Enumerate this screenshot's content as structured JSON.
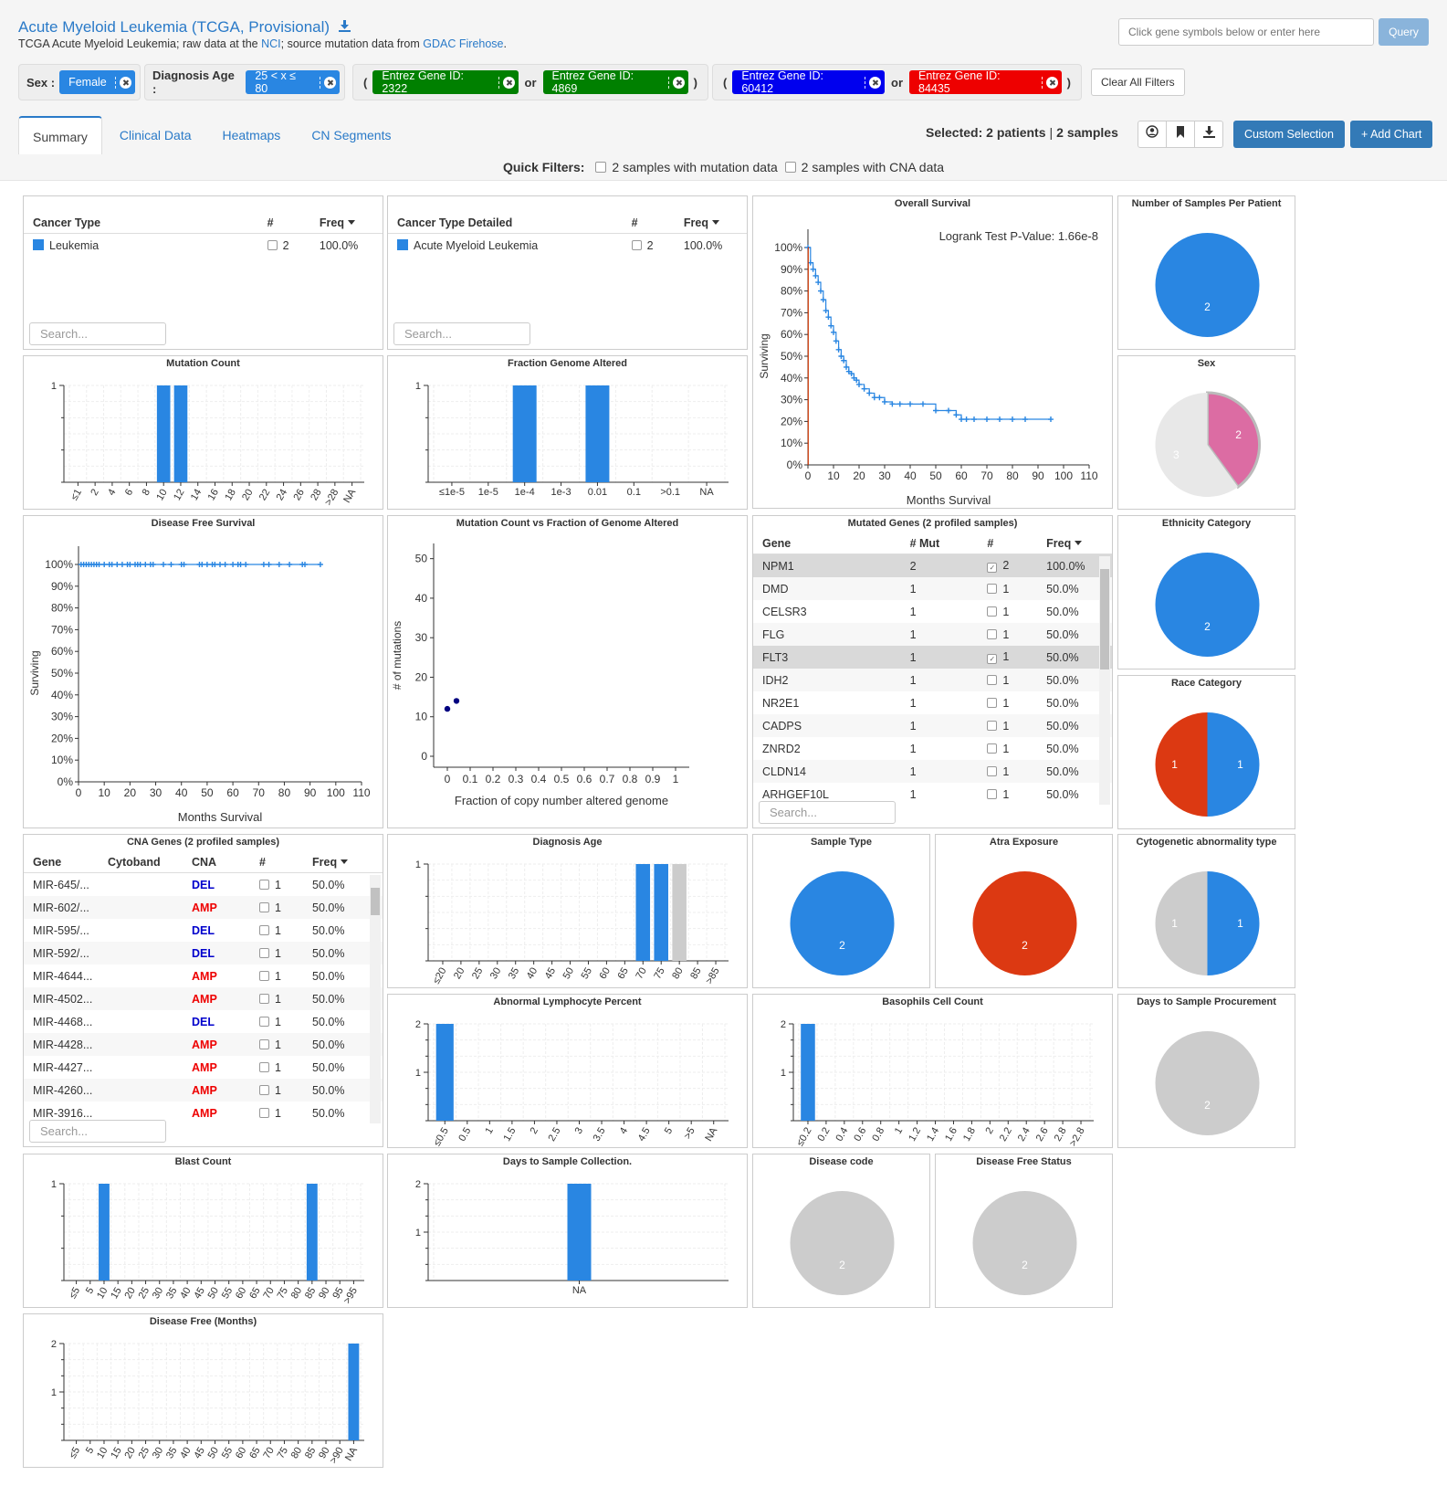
{
  "header": {
    "title": "Acute Myeloid Leukemia (TCGA, Provisional)",
    "download_icon": "download-icon",
    "sub_prefix": "TCGA Acute Myeloid Leukemia; raw data at the ",
    "nci_link": "NCI",
    "sub_mid": "; source mutation data from ",
    "gdac_link": "GDAC Firehose",
    "sub_end": ".",
    "gene_input_placeholder": "Click gene symbols below or enter here",
    "query_label": "Query"
  },
  "filters": {
    "sex_label": "Sex :",
    "sex_value": "Female",
    "age_label": "Diagnosis Age :",
    "age_value": "25 < x ≤ 80",
    "open_paren": "(",
    "close_paren": ")",
    "or": "or",
    "g1": "Entrez Gene ID: 2322",
    "g2": "Entrez Gene ID: 4869",
    "g3": "Entrez Gene ID: 60412",
    "g4": "Entrez Gene ID: 84435",
    "clear_all": "Clear All Filters",
    "colors": {
      "sex": "#2986e2",
      "g1": "#008000",
      "g2": "#008000",
      "g3": "#0000ee",
      "g4": "#ee0000"
    }
  },
  "tabs": [
    "Summary",
    "Clinical Data",
    "Heatmaps",
    "CN Segments"
  ],
  "selection": {
    "prefix": "Selected:",
    "patients": "2 patients",
    "sep": "|",
    "samples": "2 samples"
  },
  "toolbar": {
    "custom_selection": "Custom Selection",
    "add_chart": "+ Add Chart",
    "icons": [
      "user-icon",
      "bookmark-icon",
      "download-icon"
    ]
  },
  "quick_filters": {
    "label": "Quick Filters:",
    "mut": "2 samples with mutation data",
    "cna": "2 samples with CNA data"
  },
  "cancer_type": {
    "h": [
      "Cancer Type",
      "#",
      "Freq"
    ],
    "row": [
      "Leukemia",
      "2",
      "100.0%"
    ],
    "search": "Search..."
  },
  "cancer_type_detailed": {
    "h": [
      "Cancer Type Detailed",
      "#",
      "Freq"
    ],
    "row": [
      "Acute Myeloid Leukemia",
      "2",
      "100.0%"
    ],
    "search": "Search..."
  },
  "mutated_genes": {
    "title": "Mutated Genes (2 profiled samples)",
    "h": [
      "Gene",
      "# Mut",
      "#",
      "Freq"
    ],
    "search": "Search...",
    "rows": [
      [
        "NPM1",
        "2",
        "2",
        "100.0%",
        true
      ],
      [
        "DMD",
        "1",
        "1",
        "50.0%",
        false
      ],
      [
        "CELSR3",
        "1",
        "1",
        "50.0%",
        false
      ],
      [
        "FLG",
        "1",
        "1",
        "50.0%",
        false
      ],
      [
        "FLT3",
        "1",
        "1",
        "50.0%",
        true
      ],
      [
        "IDH2",
        "1",
        "1",
        "50.0%",
        false
      ],
      [
        "NR2E1",
        "1",
        "1",
        "50.0%",
        false
      ],
      [
        "CADPS",
        "1",
        "1",
        "50.0%",
        false
      ],
      [
        "ZNRD2",
        "1",
        "1",
        "50.0%",
        false
      ],
      [
        "CLDN14",
        "1",
        "1",
        "50.0%",
        false
      ],
      [
        "ARHGEF10L",
        "1",
        "1",
        "50.0%",
        false
      ]
    ]
  },
  "cna_genes": {
    "title": "CNA Genes (2 profiled samples)",
    "h": [
      "Gene",
      "Cytoband",
      "CNA",
      "#",
      "Freq"
    ],
    "search": "Search...",
    "rows": [
      [
        "MIR-645/...",
        "DEL",
        "1",
        "50.0%"
      ],
      [
        "MIR-602/...",
        "AMP",
        "1",
        "50.0%"
      ],
      [
        "MIR-595/...",
        "DEL",
        "1",
        "50.0%"
      ],
      [
        "MIR-592/...",
        "DEL",
        "1",
        "50.0%"
      ],
      [
        "MIR-4644...",
        "AMP",
        "1",
        "50.0%"
      ],
      [
        "MIR-4502...",
        "AMP",
        "1",
        "50.0%"
      ],
      [
        "MIR-4468...",
        "DEL",
        "1",
        "50.0%"
      ],
      [
        "MIR-4428...",
        "AMP",
        "1",
        "50.0%"
      ],
      [
        "MIR-4427...",
        "AMP",
        "1",
        "50.0%"
      ],
      [
        "MIR-4260...",
        "AMP",
        "1",
        "50.0%"
      ],
      [
        "MIR-3916...",
        "AMP",
        "1",
        "50.0%"
      ]
    ],
    "colors": {
      "DEL": "#0000cc",
      "AMP": "#ee0000"
    }
  },
  "chart_data": [
    {
      "id": "os",
      "type": "line",
      "title": "Overall Survival",
      "xlabel": "Months Survival",
      "ylabel": "Surviving",
      "logrank": "Logrank Test P-Value: 1.66e-8",
      "xlim": [
        0,
        110
      ],
      "xticks": [
        0,
        10,
        20,
        30,
        40,
        50,
        60,
        70,
        80,
        90,
        100,
        110
      ],
      "yticks": [
        "0%",
        "10%",
        "20%",
        "30%",
        "40%",
        "50%",
        "60%",
        "70%",
        "80%",
        "90%",
        "100%"
      ],
      "series": [
        {
          "color": "#2986e2",
          "x": [
            0,
            1,
            2,
            3,
            4,
            5,
            6,
            7,
            8,
            9,
            10,
            11,
            12,
            13,
            14,
            15,
            16,
            17,
            18,
            19,
            20,
            22,
            24,
            26,
            28,
            30,
            33,
            36,
            40,
            45,
            50,
            55,
            58,
            60,
            62,
            65,
            70,
            75,
            80,
            85,
            95
          ],
          "y": [
            100,
            93,
            90,
            87,
            84,
            80,
            76,
            71,
            68,
            64,
            61,
            57,
            53,
            50,
            48,
            45,
            43,
            42,
            40,
            39,
            37,
            35,
            33,
            31,
            31,
            29,
            28,
            28,
            28,
            28,
            25,
            25,
            23,
            21,
            21,
            21,
            21,
            21,
            21,
            21,
            21
          ]
        },
        {
          "color": "#cc3300",
          "x": [
            0,
            0.1,
            0.1
          ],
          "y": [
            100,
            100,
            0
          ]
        }
      ]
    },
    {
      "id": "dfs",
      "type": "line",
      "title": "Disease Free Survival",
      "xlabel": "Months Survival",
      "ylabel": "Surviving",
      "xlim": [
        0,
        110
      ],
      "xticks": [
        0,
        10,
        20,
        30,
        40,
        50,
        60,
        70,
        80,
        90,
        100,
        110
      ],
      "yticks": [
        "0%",
        "10%",
        "20%",
        "30%",
        "40%",
        "50%",
        "60%",
        "70%",
        "80%",
        "90%",
        "100%"
      ],
      "series": [
        {
          "color": "#2986e2",
          "x": [
            0,
            94
          ],
          "y": [
            100,
            100
          ]
        }
      ],
      "censor": [
        1,
        2,
        3,
        4,
        5,
        6,
        7,
        8,
        10,
        12,
        13,
        15,
        17,
        19,
        20,
        22,
        23,
        24,
        26,
        28,
        29,
        33,
        36,
        40,
        41,
        47,
        48,
        50,
        52,
        53,
        55,
        57,
        60,
        62,
        63,
        65,
        72,
        74,
        78,
        82,
        87,
        88,
        94
      ]
    },
    {
      "id": "mutcount",
      "type": "bar",
      "title": "Mutation Count",
      "categories": [
        "≤1",
        "2",
        "4",
        "6",
        "8",
        "10",
        "12",
        "14",
        "16",
        "18",
        "20",
        "22",
        "24",
        "26",
        "28",
        ">28",
        "NA"
      ],
      "values": [
        0,
        0,
        0,
        0,
        0,
        1,
        1,
        0,
        0,
        0,
        0,
        0,
        0,
        0,
        0,
        0,
        0
      ],
      "ylim": [
        0,
        1
      ],
      "yticks": [
        "1"
      ]
    },
    {
      "id": "fga",
      "type": "bar",
      "title": "Fraction Genome Altered",
      "categories": [
        "≤1e-5",
        "1e-5",
        "1e-4",
        "1e-3",
        "0.01",
        "0.1",
        ">0.1",
        "NA"
      ],
      "values": [
        0,
        0,
        1,
        0,
        1,
        0,
        0,
        0
      ],
      "ylim": [
        0,
        1
      ],
      "yticks": [
        "1"
      ]
    },
    {
      "id": "scatter",
      "type": "scatter",
      "title": "Mutation Count vs Fraction of Genome Altered",
      "xlabel": "Fraction of copy number altered genome",
      "ylabel": "# of mutations",
      "xticks": [
        "0",
        "0.1",
        "0.2",
        "0.3",
        "0.4",
        "0.5",
        "0.6",
        "0.7",
        "0.8",
        "0.9",
        "1"
      ],
      "yticks": [
        "0",
        "10",
        "20",
        "30",
        "40",
        "50"
      ],
      "xlim": [
        0,
        1
      ],
      "ylim": [
        0,
        52
      ],
      "points": [
        {
          "x": 0.0,
          "y": 12
        },
        {
          "x": 0.04,
          "y": 14
        }
      ]
    },
    {
      "id": "diagage",
      "type": "bar",
      "title": "Diagnosis Age",
      "categories": [
        "≤20",
        "20",
        "25",
        "30",
        "35",
        "40",
        "45",
        "50",
        "55",
        "60",
        "65",
        "70",
        "75",
        "80",
        "85",
        ">85"
      ],
      "values": [
        0,
        0,
        0,
        0,
        0,
        0,
        0,
        0,
        0,
        0,
        0,
        1,
        1,
        1,
        0,
        0
      ],
      "grey": [
        13
      ],
      "ylim": [
        0,
        1
      ],
      "yticks": [
        "1"
      ]
    },
    {
      "id": "alp",
      "type": "bar",
      "title": "Abnormal Lymphocyte Percent",
      "categories": [
        "≤0.5",
        "0.5",
        "1",
        "1.5",
        "2",
        "2.5",
        "3",
        "3.5",
        "4",
        "4.5",
        "5",
        ">5",
        "NA"
      ],
      "values": [
        2,
        0,
        0,
        0,
        0,
        0,
        0,
        0,
        0,
        0,
        0,
        0,
        0
      ],
      "ylim": [
        0,
        2
      ],
      "yticks": [
        "1",
        "2"
      ]
    },
    {
      "id": "baso",
      "type": "bar",
      "title": "Basophils Cell Count",
      "categories": [
        "≤0.2",
        "0.2",
        "0.4",
        "0.6",
        "0.8",
        "1",
        "1.2",
        "1.4",
        "1.6",
        "1.8",
        "2",
        "2.2",
        "2.4",
        "2.6",
        "2.8",
        ">2.8"
      ],
      "values": [
        2,
        0,
        0,
        0,
        0,
        0,
        0,
        0,
        0,
        0,
        0,
        0,
        0,
        0,
        0,
        0
      ],
      "ylim": [
        0,
        2
      ],
      "yticks": [
        "1",
        "2"
      ]
    },
    {
      "id": "blast",
      "type": "bar",
      "title": "Blast Count",
      "categories": [
        "≤5",
        "5",
        "10",
        "15",
        "20",
        "25",
        "30",
        "35",
        "40",
        "45",
        "50",
        "55",
        "60",
        "65",
        "70",
        "75",
        "80",
        "85",
        "90",
        "95",
        ">95"
      ],
      "values": [
        0,
        0,
        1,
        0,
        0,
        0,
        0,
        0,
        0,
        0,
        0,
        0,
        0,
        0,
        0,
        0,
        0,
        1,
        0,
        0,
        0
      ],
      "ylim": [
        0,
        1
      ],
      "yticks": [
        "1"
      ]
    },
    {
      "id": "dsc",
      "type": "bar",
      "title": "Days to Sample Collection.",
      "categories": [
        "NA"
      ],
      "values": [
        2
      ],
      "ylim": [
        0,
        2
      ],
      "yticks": [
        "1",
        "2"
      ]
    },
    {
      "id": "dfm",
      "type": "bar",
      "title": "Disease Free (Months)",
      "categories": [
        "≤5",
        "5",
        "10",
        "15",
        "20",
        "25",
        "30",
        "35",
        "40",
        "45",
        "50",
        "55",
        "60",
        "65",
        "70",
        "75",
        "80",
        "85",
        "90",
        ">90",
        "NA"
      ],
      "values": [
        0,
        0,
        0,
        0,
        0,
        0,
        0,
        0,
        0,
        0,
        0,
        0,
        0,
        0,
        0,
        0,
        0,
        0,
        0,
        0,
        2
      ],
      "ylim": [
        0,
        2
      ],
      "yticks": [
        "1",
        "2"
      ]
    },
    {
      "id": "nspp",
      "type": "pie",
      "title": "Number of Samples Per Patient",
      "slices": [
        {
          "label": "2",
          "value": 2,
          "color": "#2986e2"
        }
      ]
    },
    {
      "id": "sex",
      "type": "pie",
      "title": "Sex",
      "slices": [
        {
          "label": "2",
          "value": 2,
          "color": "#dc6ca3",
          "highlight": true
        },
        {
          "label": "3",
          "value": 3,
          "color": "#e8e8e8"
        }
      ]
    },
    {
      "id": "eth",
      "type": "pie",
      "title": "Ethnicity Category",
      "slices": [
        {
          "label": "2",
          "value": 2,
          "color": "#2986e2"
        }
      ]
    },
    {
      "id": "race",
      "type": "pie",
      "title": "Race Category",
      "slices": [
        {
          "label": "1",
          "value": 1,
          "color": "#2986e2"
        },
        {
          "label": "1",
          "value": 1,
          "color": "#dc3912"
        }
      ]
    },
    {
      "id": "stype",
      "type": "pie",
      "title": "Sample Type",
      "slices": [
        {
          "label": "2",
          "value": 2,
          "color": "#2986e2"
        }
      ]
    },
    {
      "id": "atra",
      "type": "pie",
      "title": "Atra Exposure",
      "slices": [
        {
          "label": "2",
          "value": 2,
          "color": "#dc3912"
        }
      ]
    },
    {
      "id": "cyto",
      "type": "pie",
      "title": "Cytogenetic abnormality type",
      "slices": [
        {
          "label": "1",
          "value": 1,
          "color": "#2986e2"
        },
        {
          "label": "1",
          "value": 1,
          "color": "#cccccc"
        }
      ]
    },
    {
      "id": "dsp",
      "type": "pie",
      "title": "Days to Sample Procurement",
      "slices": [
        {
          "label": "2",
          "value": 2,
          "color": "#cccccc"
        }
      ]
    },
    {
      "id": "dcode",
      "type": "pie",
      "title": "Disease code",
      "slices": [
        {
          "label": "2",
          "value": 2,
          "color": "#cccccc"
        }
      ]
    },
    {
      "id": "dfstat",
      "type": "pie",
      "title": "Disease Free Status",
      "slices": [
        {
          "label": "2",
          "value": 2,
          "color": "#cccccc"
        }
      ]
    }
  ]
}
